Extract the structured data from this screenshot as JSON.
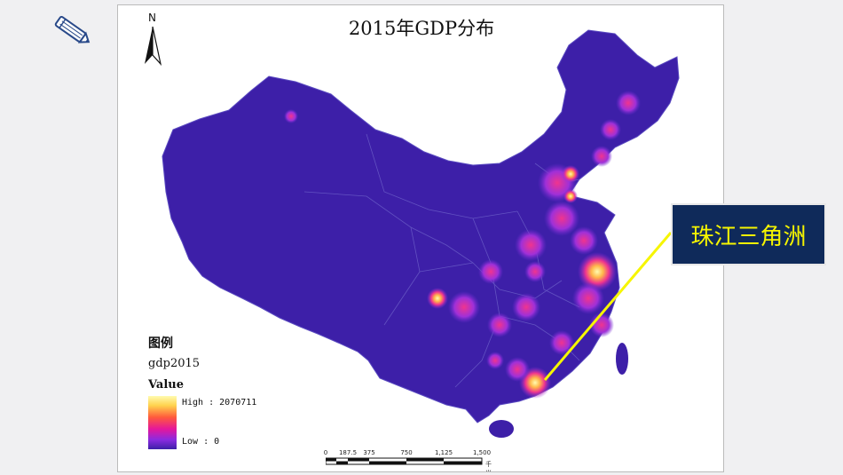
{
  "map": {
    "title": "2015年GDP分布",
    "north_arrow_label": "N",
    "legend": {
      "title": "图例",
      "field": "gdp2015",
      "value_label": "Value",
      "high": "High : 2070711",
      "low": "Low : 0",
      "high_value": 2070711,
      "low_value": 0
    },
    "scale_bar": {
      "ticks": [
        "0",
        "187.5",
        "375",
        "750",
        "1,125",
        "1,500"
      ],
      "unit": "千米"
    },
    "colors": {
      "background": "#3d1fa8",
      "mid": "#e5179b",
      "high": "#fffbb0"
    }
  },
  "callout": {
    "label": "珠江三角洲",
    "background": "#0f2a5a",
    "text_color": "#f6f500"
  },
  "icons": {
    "edit": "pencil-icon"
  }
}
